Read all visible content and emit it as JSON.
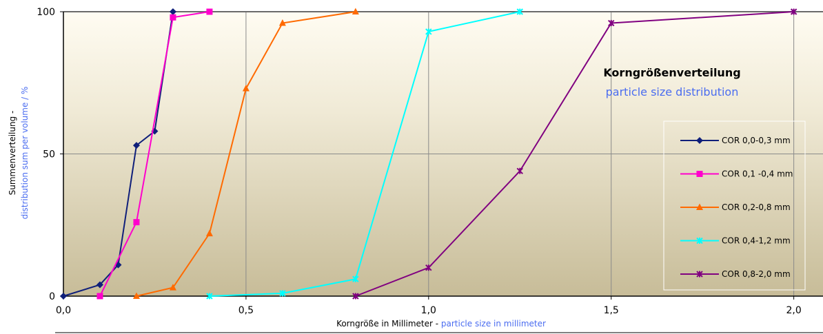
{
  "chart_data": {
    "type": "line",
    "title": "Korngrößenverteilung",
    "subtitle": "particle size distribution",
    "xlabel_de": "Korngröße in Millimeter - ",
    "xlabel_en": "particle size in millimeter",
    "ylabel_de": "Summenverteilung -",
    "ylabel_en": "distribution sum per volume / %",
    "xlim": [
      0,
      2.08
    ],
    "ylim": [
      0,
      100
    ],
    "xticks": [
      0,
      0.5,
      1,
      1.5,
      2
    ],
    "xtick_labels": [
      "0,0",
      "0,5",
      "1,0",
      "1,5",
      "2,0"
    ],
    "yticks": [
      0,
      50,
      100
    ],
    "ytick_labels": [
      "0",
      "50",
      "100"
    ],
    "grid": true,
    "legend_position": "right",
    "series": [
      {
        "name": "COR 0,0-0,3 mm",
        "color": "#0f1f7a",
        "marker": "diamond",
        "x": [
          0,
          0.1,
          0.15,
          0.2,
          0.25,
          0.3
        ],
        "y": [
          0,
          4,
          11,
          53,
          58,
          100
        ]
      },
      {
        "name": "COR 0,1 -0,4 mm",
        "color": "#ff00cc",
        "marker": "square",
        "x": [
          0.1,
          0.2,
          0.3,
          0.4
        ],
        "y": [
          0,
          26,
          98,
          100
        ]
      },
      {
        "name": "COR 0,2-0,8 mm",
        "color": "#ff6a00",
        "marker": "triangle",
        "x": [
          0.2,
          0.3,
          0.4,
          0.5,
          0.6,
          0.8
        ],
        "y": [
          0,
          3,
          22,
          73,
          96,
          100
        ]
      },
      {
        "name": "COR 0,4-1,2 mm",
        "color": "#00ffff",
        "marker": "x",
        "x": [
          0.4,
          0.6,
          0.8,
          1.0,
          1.25
        ],
        "y": [
          0,
          1,
          6,
          93,
          100
        ]
      },
      {
        "name": "COR 0,8-2,0 mm",
        "color": "#800080",
        "marker": "x",
        "x": [
          0.8,
          1.0,
          1.25,
          1.5,
          2.0
        ],
        "y": [
          0,
          10,
          44,
          96,
          100
        ]
      }
    ]
  }
}
